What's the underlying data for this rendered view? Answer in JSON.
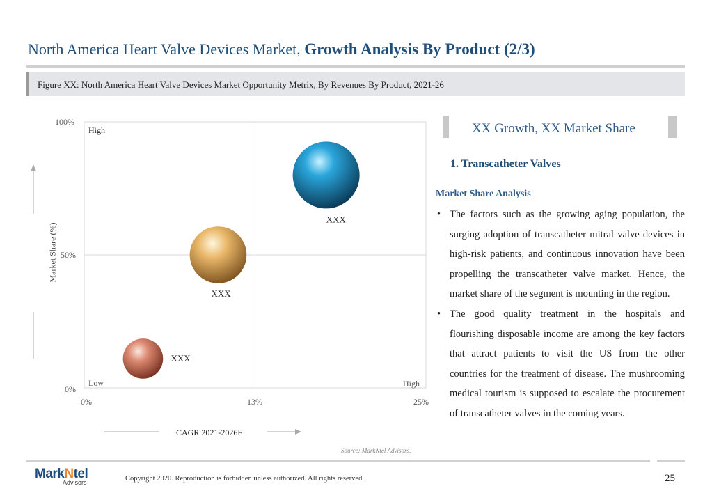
{
  "page": {
    "title_regular": "North America Heart Valve Devices Market,",
    "title_bold": "Growth Analysis By Product (2/3)",
    "figure_caption": "Figure XX: North America Heart Valve Devices Market Opportunity Metrix, By Revenues By Product, 2021-26",
    "page_number": "25"
  },
  "chart_data": {
    "type": "scatter",
    "xlabel": "CAGR 2021-2026F",
    "ylabel": "Market Share (%)",
    "x_ticks": [
      "0%",
      "13%",
      "25%"
    ],
    "y_ticks": [
      "0%",
      "50%",
      "100%"
    ],
    "xlim": [
      0,
      25
    ],
    "ylim": [
      0,
      100
    ],
    "corner_labels": {
      "top_left": "High",
      "bottom_left": "Low",
      "bottom_right": "High"
    },
    "grid": true,
    "points": [
      {
        "label": "XXX",
        "x": 4.3,
        "y": 11,
        "size": 0.6,
        "color": "#d9826a"
      },
      {
        "label": "XXX",
        "x": 9.8,
        "y": 50,
        "size": 0.85,
        "color": "#e8b56a"
      },
      {
        "label": "XXX",
        "x": 17.7,
        "y": 80,
        "size": 1.0,
        "color": "#2a93c4"
      }
    ],
    "source": "Source: MarkNtel Advisors,"
  },
  "right_panel": {
    "header": "XX Growth, XX Market Share",
    "segment_title": "1. Transcatheter Valves",
    "section_title": "Market Share Analysis",
    "bullets": [
      "The factors such as the growing aging population, the surging adoption of transcatheter mitral valve devices in high-risk patients, and continuous innovation have been propelling the transcatheter valve market. Hence, the market share of the segment is mounting in the region.",
      "The good quality treatment in the hospitals and flourishing disposable income are among the key factors that attract patients to visit the US from the other countries for the treatment of disease. The mushrooming medical tourism is supposed to escalate the procurement of transcatheter valves in the coming years."
    ]
  },
  "footer": {
    "logo_main": "Mark",
    "logo_accent": "N",
    "logo_rest": "tel",
    "logo_sub": "Advisors",
    "copyright": "Copyright 2020. Reproduction is forbidden unless authorized. All rights reserved."
  }
}
